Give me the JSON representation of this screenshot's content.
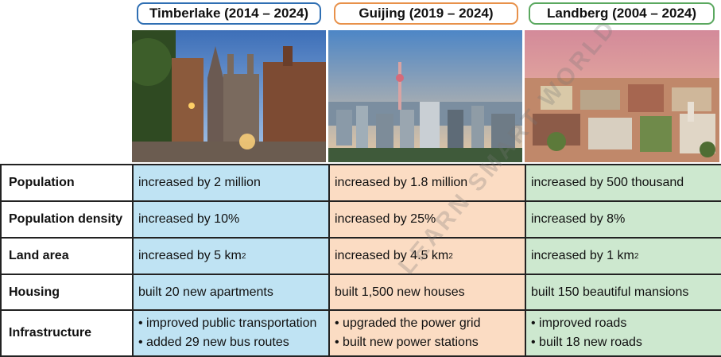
{
  "cities": [
    {
      "title": "Timberlake (2014 – 2024)",
      "border": "#2f6fb3",
      "fill": "#bfe3f3"
    },
    {
      "title": "Guijing (2019 – 2024)",
      "border": "#e8914a",
      "fill": "#fbdcc3"
    },
    {
      "title": "Landberg (2004 – 2024)",
      "border": "#5aa85f",
      "fill": "#cde8cf"
    }
  ],
  "rows": [
    {
      "label": "Population",
      "values": [
        "increased by 2 million",
        "increased by 1.8 million",
        "increased by 500 thousand"
      ]
    },
    {
      "label": "Population density",
      "values": [
        "increased by 10%",
        "increased by 25%",
        "increased by 8%"
      ]
    },
    {
      "label": "Land area",
      "values": [
        "increased by 5 km",
        "increased by 4.5 km",
        "increased by 1 km"
      ],
      "superscript": "2"
    },
    {
      "label": "Housing",
      "values": [
        "built 20 new apartments",
        "built 1,500 new houses",
        "built 150 beautiful mansions"
      ]
    },
    {
      "label": "Infrastructure",
      "bullets": [
        [
          "• improved public transportation",
          "• added 29 new bus routes"
        ],
        [
          "• upgraded the power grid",
          "• built new power stations"
        ],
        [
          "• improved roads",
          "• built 18 new roads"
        ]
      ]
    }
  ],
  "watermark": "LEARN SMART WORLD"
}
